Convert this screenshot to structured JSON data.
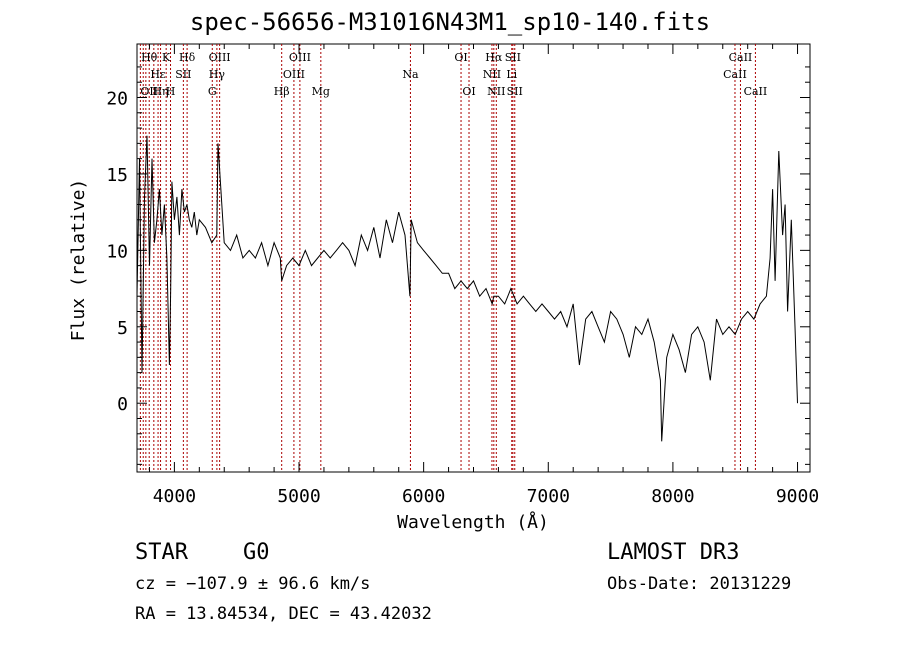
{
  "chart_data": {
    "type": "line",
    "title": "spec-56656-M31016N43M1_sp10-140.fits",
    "xlabel": "Wavelength (Å)",
    "ylabel": "Flux (relative)",
    "xlim": [
      3700,
      9100
    ],
    "ylim": [
      -4.5,
      23.5
    ],
    "xticks": [
      4000,
      5000,
      6000,
      7000,
      8000,
      9000
    ],
    "yticks": [
      0,
      5,
      10,
      15,
      20
    ],
    "series": [
      {
        "name": "flux",
        "x": [
          3700,
          3720,
          3740,
          3760,
          3780,
          3800,
          3820,
          3840,
          3860,
          3880,
          3900,
          3920,
          3940,
          3960,
          3970,
          3980,
          4000,
          4020,
          4040,
          4060,
          4080,
          4100,
          4120,
          4140,
          4160,
          4180,
          4200,
          4250,
          4300,
          4340,
          4350,
          4400,
          4450,
          4500,
          4550,
          4600,
          4650,
          4700,
          4750,
          4800,
          4850,
          4861,
          4900,
          4950,
          5000,
          5050,
          5100,
          5150,
          5200,
          5250,
          5300,
          5350,
          5400,
          5450,
          5500,
          5550,
          5600,
          5650,
          5700,
          5750,
          5800,
          5850,
          5890,
          5900,
          5950,
          6000,
          6050,
          6100,
          6150,
          6200,
          6250,
          6300,
          6350,
          6400,
          6450,
          6500,
          6550,
          6563,
          6600,
          6650,
          6700,
          6750,
          6800,
          6850,
          6900,
          6950,
          7000,
          7050,
          7100,
          7150,
          7200,
          7250,
          7300,
          7350,
          7400,
          7450,
          7500,
          7550,
          7600,
          7650,
          7700,
          7750,
          7800,
          7850,
          7900,
          7910,
          7950,
          8000,
          8050,
          8100,
          8150,
          8200,
          8250,
          8300,
          8350,
          8400,
          8450,
          8500,
          8550,
          8600,
          8650,
          8700,
          8750,
          8780,
          8800,
          8820,
          8850,
          8880,
          8900,
          8920,
          8950,
          8980,
          9000
        ],
        "values": [
          7.0,
          16.0,
          2.0,
          13.5,
          17.5,
          9.0,
          16.0,
          10.5,
          12.0,
          14.0,
          11.0,
          13.0,
          9.5,
          2.5,
          7.5,
          14.5,
          12.0,
          13.5,
          11.0,
          14.0,
          12.5,
          13.0,
          12.0,
          11.5,
          12.5,
          11.0,
          12.0,
          11.5,
          10.5,
          11.0,
          17.0,
          10.5,
          10.0,
          11.0,
          9.5,
          10.0,
          9.5,
          10.5,
          9.0,
          10.5,
          9.5,
          8.0,
          9.0,
          9.5,
          9.0,
          10.0,
          9.0,
          9.5,
          10.0,
          9.5,
          10.0,
          10.5,
          10.0,
          9.0,
          11.0,
          10.0,
          11.5,
          9.5,
          12.0,
          10.5,
          12.5,
          11.0,
          7.0,
          12.0,
          10.5,
          10.0,
          9.5,
          9.0,
          8.5,
          8.5,
          7.5,
          8.0,
          7.5,
          8.0,
          7.0,
          7.5,
          6.5,
          7.0,
          7.0,
          6.5,
          7.5,
          6.5,
          7.0,
          6.5,
          6.0,
          6.5,
          6.0,
          5.5,
          6.0,
          5.0,
          6.5,
          2.5,
          5.5,
          6.0,
          5.0,
          4.0,
          6.0,
          5.5,
          4.5,
          3.0,
          5.0,
          4.5,
          5.5,
          4.0,
          1.5,
          -2.5,
          3.0,
          4.5,
          3.5,
          2.0,
          4.5,
          5.0,
          4.0,
          1.5,
          5.5,
          4.5,
          5.0,
          4.5,
          5.5,
          6.0,
          5.5,
          6.5,
          7.0,
          9.5,
          14.0,
          8.0,
          16.5,
          11.0,
          13.0,
          6.0,
          12.0,
          5.0,
          0.0
        ]
      }
    ],
    "lines": [
      {
        "x": 3727,
        "color": "#aa0000",
        "label": "OII",
        "row": 2,
        "align": "start"
      },
      {
        "x": 3750,
        "color": "#aa0000",
        "label": "",
        "row": 0,
        "align": "start"
      },
      {
        "x": 3771,
        "color": "#aa0000",
        "label": "",
        "row": 0,
        "align": "start"
      },
      {
        "x": 3798,
        "color": "#aa0000",
        "label": "Hθ",
        "row": 0,
        "align": "middle"
      },
      {
        "x": 3835,
        "color": "#aa0000",
        "label": "",
        "row": 0,
        "align": "start"
      },
      {
        "x": 3869,
        "color": "#aa0000",
        "label": "Hε",
        "row": 1,
        "align": "middle"
      },
      {
        "x": 3889,
        "color": "#aa0000",
        "label": "Hη",
        "row": 2,
        "align": "middle"
      },
      {
        "x": 3934,
        "color": "#aa0000",
        "label": "K",
        "row": 0,
        "align": "middle"
      },
      {
        "x": 3969,
        "color": "#aa0000",
        "label": "H",
        "row": 2,
        "align": "middle"
      },
      {
        "x": 4072,
        "color": "#aa0000",
        "label": "SII",
        "row": 1,
        "align": "middle"
      },
      {
        "x": 4102,
        "color": "#aa0000",
        "label": "Hδ",
        "row": 0,
        "align": "middle"
      },
      {
        "x": 4304,
        "color": "#aa0000",
        "label": "G",
        "row": 2,
        "align": "middle"
      },
      {
        "x": 4341,
        "color": "#aa0000",
        "label": "Hγ",
        "row": 1,
        "align": "middle"
      },
      {
        "x": 4363,
        "color": "#aa0000",
        "label": "OIII",
        "row": 0,
        "align": "middle"
      },
      {
        "x": 4861,
        "color": "#aa0000",
        "label": "Hβ",
        "row": 2,
        "align": "middle"
      },
      {
        "x": 4959,
        "color": "#aa0000",
        "label": "OIII",
        "row": 1,
        "align": "middle"
      },
      {
        "x": 5007,
        "color": "#aa0000",
        "label": "OIII",
        "row": 0,
        "align": "middle"
      },
      {
        "x": 5175,
        "color": "#aa0000",
        "label": "Mg",
        "row": 2,
        "align": "middle"
      },
      {
        "x": 5894,
        "color": "#aa0000",
        "label": "Na",
        "row": 1,
        "align": "middle"
      },
      {
        "x": 6300,
        "color": "#aa0000",
        "label": "OI",
        "row": 0,
        "align": "middle"
      },
      {
        "x": 6364,
        "color": "#aa0000",
        "label": "OI",
        "row": 2,
        "align": "middle"
      },
      {
        "x": 6548,
        "color": "#aa0000",
        "label": "NII",
        "row": 1,
        "align": "middle"
      },
      {
        "x": 6563,
        "color": "#aa0000",
        "label": "Hα",
        "row": 0,
        "align": "middle"
      },
      {
        "x": 6583,
        "color": "#aa0000",
        "label": "NII",
        "row": 2,
        "align": "middle"
      },
      {
        "x": 6707,
        "color": "#aa0000",
        "label": "Li",
        "row": 1,
        "align": "middle"
      },
      {
        "x": 6716,
        "color": "#aa0000",
        "label": "SII",
        "row": 0,
        "align": "middle"
      },
      {
        "x": 6731,
        "color": "#aa0000",
        "label": "SII",
        "row": 2,
        "align": "middle"
      },
      {
        "x": 8498,
        "color": "#aa0000",
        "label": "CaII",
        "row": 1,
        "align": "middle"
      },
      {
        "x": 8542,
        "color": "#aa0000",
        "label": "CaII",
        "row": 0,
        "align": "middle"
      },
      {
        "x": 8662,
        "color": "#aa0000",
        "label": "CaII",
        "row": 2,
        "align": "middle"
      }
    ]
  },
  "info": {
    "class": "STAR",
    "subclass": "G0",
    "survey": "LAMOST DR3",
    "cz": "cz = −107.9 ± 96.6 km/s",
    "obs_date": "Obs-Date: 20131229",
    "coords": "RA =  13.84534, DEC =  43.42032"
  }
}
